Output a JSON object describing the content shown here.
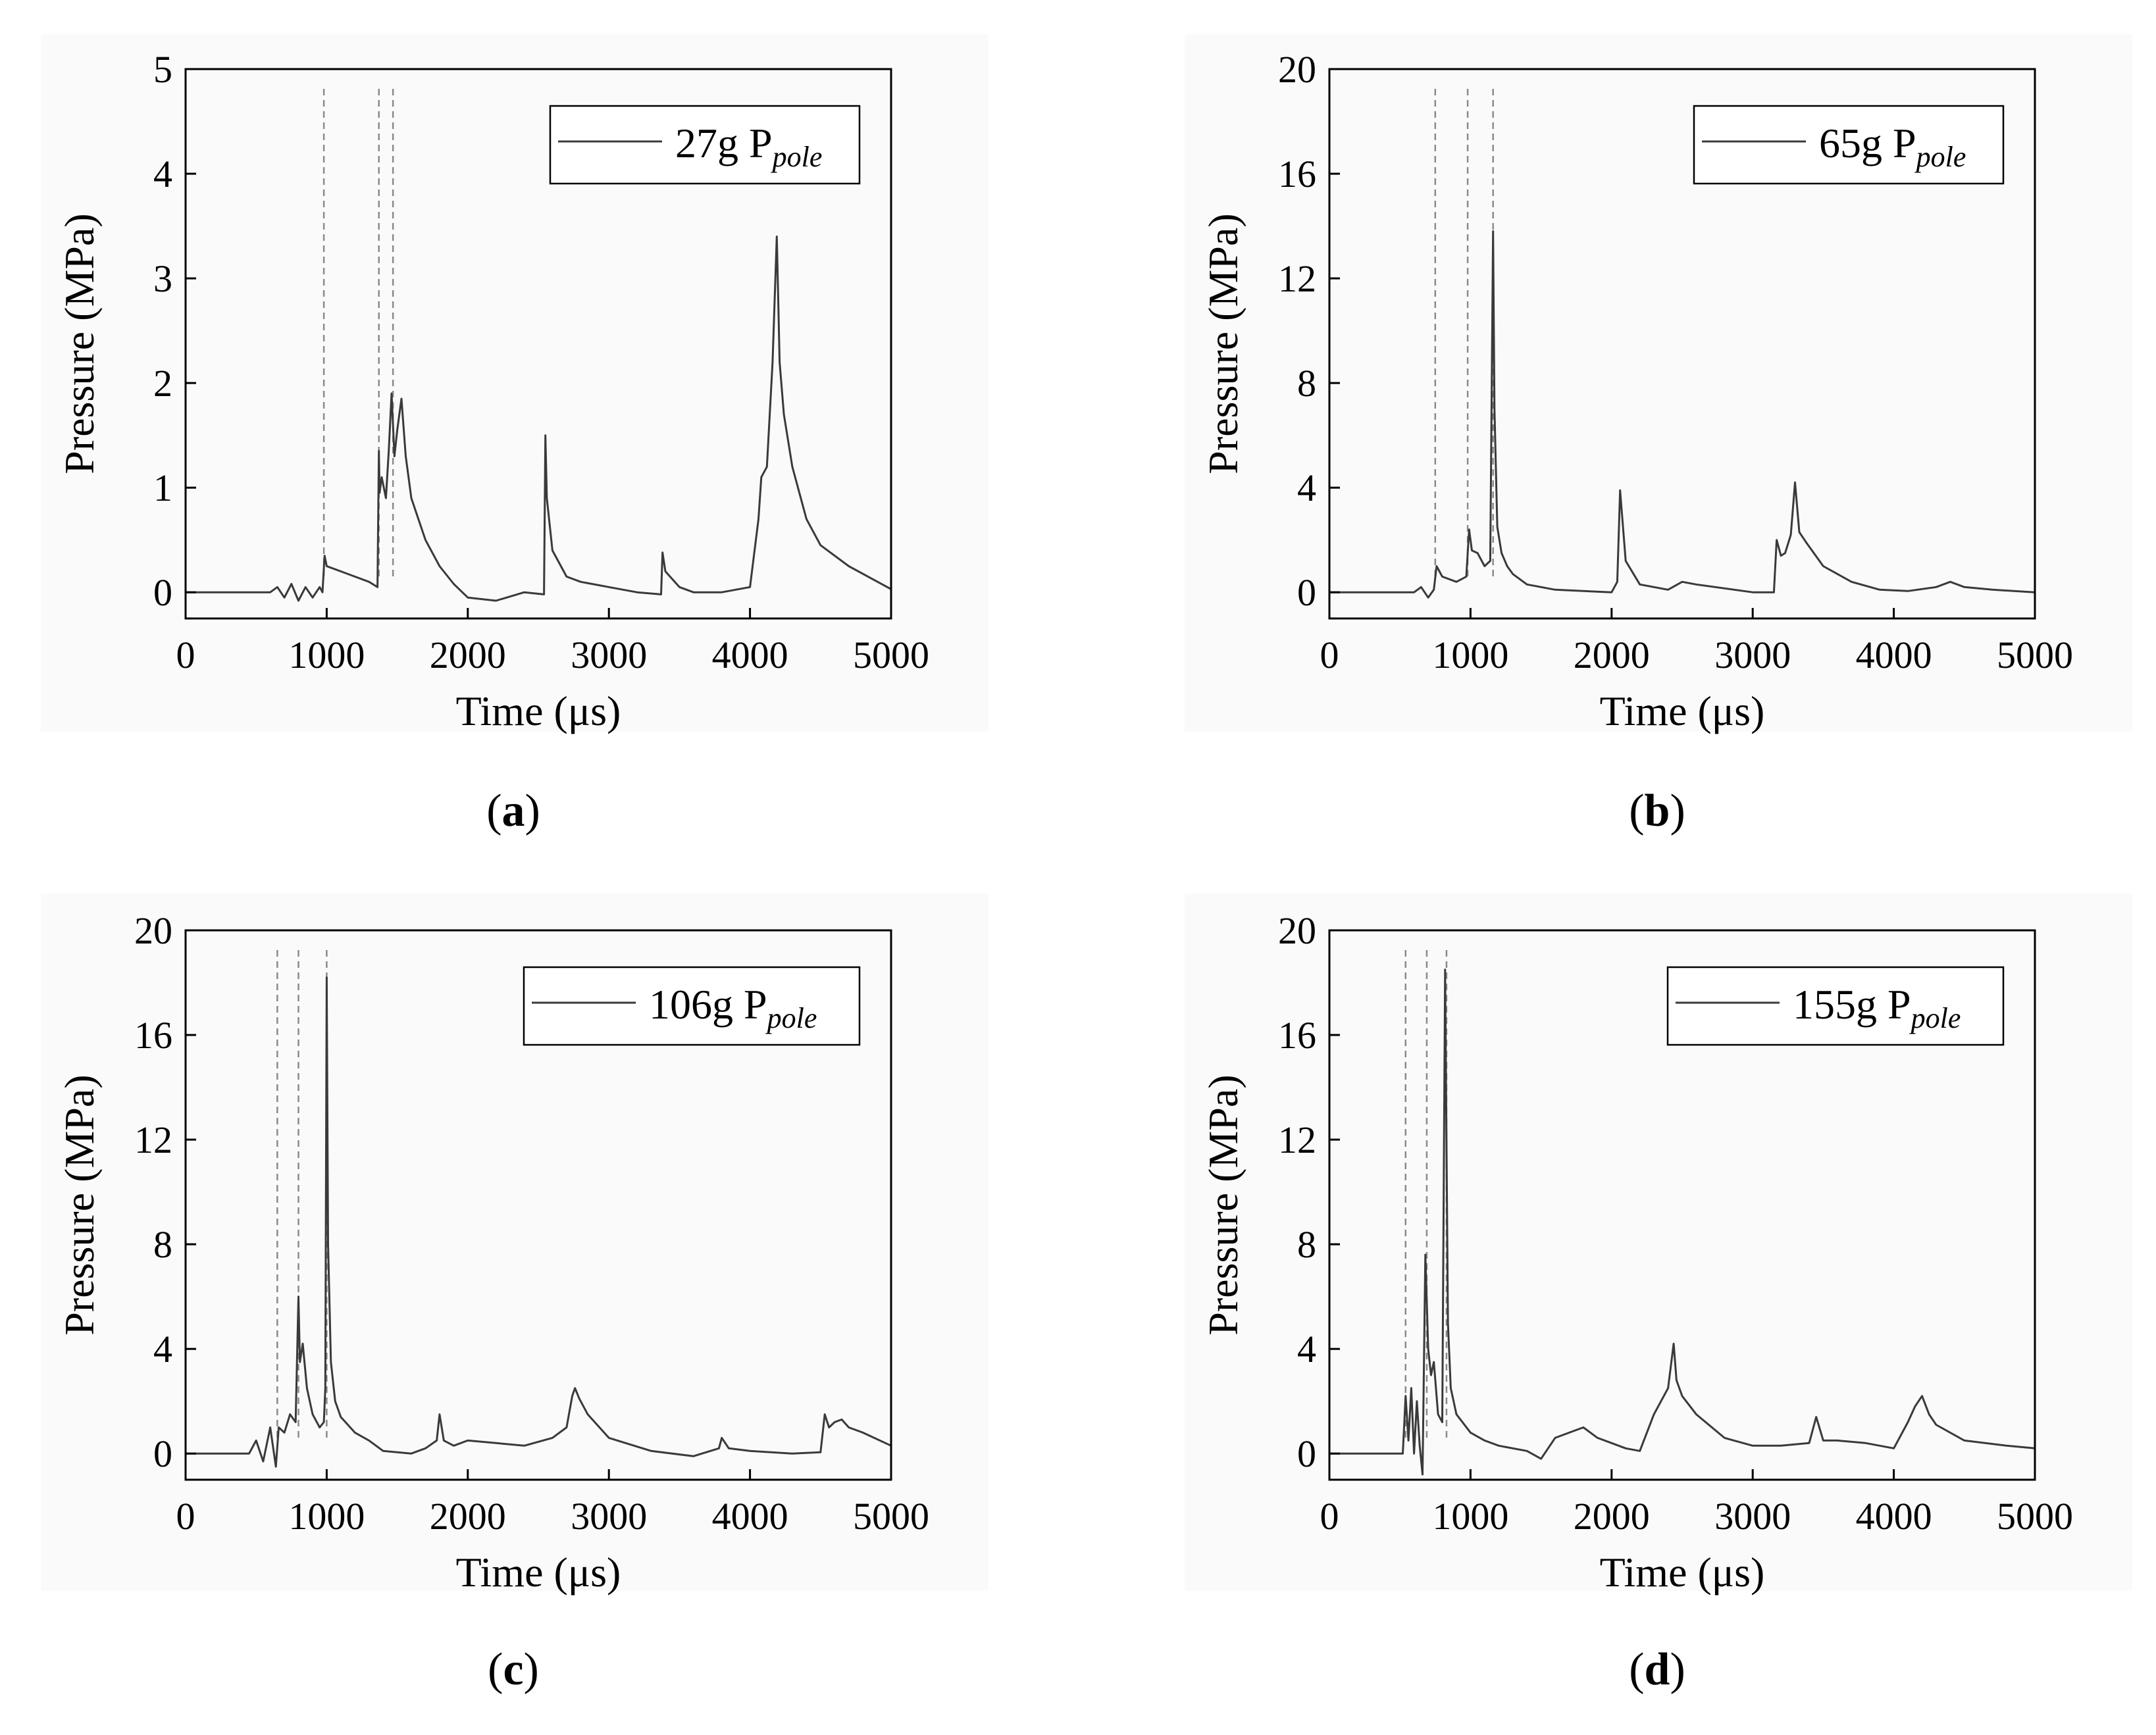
{
  "figure": {
    "trace_color": "#3a3a3a",
    "marker_color": "#8a8a8a"
  },
  "chart_data": [
    {
      "type": "line",
      "panel": "a",
      "caption": {
        "open": "(",
        "letter": "a",
        "close": ")"
      },
      "legend": {
        "main": "27g P",
        "sub": "pole"
      },
      "xlabel": "Time (μs)",
      "ylabel": "Pressure (MPa)",
      "xlim": [
        0,
        5000
      ],
      "ylim": [
        -0.25,
        5
      ],
      "xticks": [
        0,
        1000,
        2000,
        3000,
        4000,
        5000
      ],
      "yticks": [
        0,
        1,
        2,
        3,
        4,
        5
      ],
      "markers": [
        980,
        1370,
        1470
      ],
      "series": [
        {
          "name": "27g P pole",
          "x": [
            0,
            600,
            650,
            700,
            750,
            800,
            850,
            900,
            950,
            970,
            985,
            1000,
            1100,
            1200,
            1300,
            1360,
            1370,
            1375,
            1390,
            1420,
            1440,
            1460,
            1480,
            1500,
            1530,
            1560,
            1600,
            1700,
            1800,
            1900,
            2000,
            2200,
            2400,
            2540,
            2550,
            2560,
            2600,
            2700,
            2800,
            3000,
            3200,
            3370,
            3380,
            3400,
            3500,
            3600,
            3800,
            4000,
            4060,
            4080,
            4120,
            4160,
            4190,
            4200,
            4210,
            4240,
            4300,
            4400,
            4500,
            4700,
            5000
          ],
          "values": [
            0,
            0,
            0.05,
            -0.05,
            0.08,
            -0.08,
            0.05,
            -0.05,
            0.05,
            0,
            0.35,
            0.25,
            0.2,
            0.15,
            0.1,
            0.05,
            1.35,
            0.95,
            1.1,
            0.9,
            1.35,
            1.9,
            1.3,
            1.55,
            1.85,
            1.3,
            0.9,
            0.5,
            0.25,
            0.08,
            -0.05,
            -0.08,
            0,
            -0.02,
            1.5,
            0.9,
            0.4,
            0.15,
            0.1,
            0.05,
            0,
            -0.02,
            0.38,
            0.2,
            0.05,
            0,
            0,
            0.05,
            0.7,
            1.1,
            1.2,
            2.2,
            3.4,
            2.8,
            2.2,
            1.7,
            1.2,
            0.7,
            0.45,
            0.25,
            0.03
          ]
        }
      ]
    },
    {
      "type": "line",
      "panel": "b",
      "caption": {
        "open": "(",
        "letter": "b",
        "close": ")"
      },
      "legend": {
        "main": "65g P",
        "sub": "pole"
      },
      "xlabel": "Time (μs)",
      "ylabel": "Pressure (MPa)",
      "xlim": [
        0,
        5000
      ],
      "ylim": [
        -1,
        20
      ],
      "xticks": [
        0,
        1000,
        2000,
        3000,
        4000,
        5000
      ],
      "yticks": [
        0,
        4,
        8,
        12,
        16,
        20
      ],
      "markers": [
        750,
        980,
        1160
      ],
      "series": [
        {
          "name": "65g P pole",
          "x": [
            0,
            600,
            650,
            700,
            740,
            760,
            800,
            900,
            970,
            990,
            1010,
            1050,
            1100,
            1140,
            1160,
            1170,
            1190,
            1220,
            1260,
            1300,
            1400,
            1600,
            1800,
            2000,
            2040,
            2060,
            2100,
            2200,
            2400,
            2500,
            2600,
            3000,
            3150,
            3170,
            3200,
            3230,
            3270,
            3300,
            3330,
            3380,
            3500,
            3700,
            3900,
            4100,
            4300,
            4400,
            4500,
            4700,
            5000
          ],
          "values": [
            0,
            0,
            0.2,
            -0.2,
            0.1,
            1.0,
            0.6,
            0.4,
            0.6,
            2.4,
            1.6,
            1.5,
            1.0,
            1.2,
            13.8,
            7.0,
            2.5,
            1.5,
            1.0,
            0.7,
            0.3,
            0.1,
            0.05,
            0,
            0.4,
            3.9,
            1.2,
            0.3,
            0.1,
            0.4,
            0.3,
            0,
            0,
            2.0,
            1.4,
            1.5,
            2.2,
            4.2,
            2.3,
            1.9,
            1.0,
            0.4,
            0.1,
            0.05,
            0.2,
            0.4,
            0.2,
            0.1,
            0
          ]
        }
      ]
    },
    {
      "type": "line",
      "panel": "c",
      "caption": {
        "open": "(",
        "letter": "c",
        "close": ")"
      },
      "legend": {
        "main": "106g P",
        "sub": "pole"
      },
      "xlabel": "Time (μs)",
      "ylabel": "Pressure (MPa)",
      "xlim": [
        0,
        5000
      ],
      "ylim": [
        -1,
        20
      ],
      "xticks": [
        0,
        1000,
        2000,
        3000,
        4000,
        5000
      ],
      "yticks": [
        0,
        4,
        8,
        12,
        16,
        20
      ],
      "markers": [
        650,
        800,
        1000
      ],
      "series": [
        {
          "name": "106g P pole",
          "x": [
            0,
            450,
            500,
            550,
            600,
            640,
            660,
            700,
            740,
            780,
            800,
            810,
            830,
            860,
            900,
            950,
            980,
            990,
            1000,
            1010,
            1030,
            1060,
            1100,
            1200,
            1300,
            1400,
            1600,
            1700,
            1780,
            1800,
            1830,
            1900,
            2000,
            2200,
            2400,
            2600,
            2700,
            2740,
            2760,
            2790,
            2850,
            3000,
            3300,
            3600,
            3780,
            3800,
            3850,
            4000,
            4300,
            4500,
            4530,
            4560,
            4600,
            4650,
            4700,
            4800,
            5000
          ],
          "values": [
            0,
            0,
            0.5,
            -0.3,
            1.0,
            -0.5,
            1.0,
            0.8,
            1.5,
            1.2,
            6.0,
            3.5,
            4.2,
            2.5,
            1.5,
            1.0,
            1.2,
            2.5,
            18.2,
            8.0,
            3.5,
            2.0,
            1.4,
            0.8,
            0.5,
            0.1,
            0,
            0.2,
            0.5,
            1.5,
            0.5,
            0.3,
            0.5,
            0.4,
            0.3,
            0.6,
            1.0,
            2.2,
            2.5,
            2.1,
            1.5,
            0.6,
            0.1,
            -0.1,
            0.2,
            0.6,
            0.2,
            0.1,
            0,
            0.05,
            1.5,
            1.0,
            1.2,
            1.3,
            1.0,
            0.8,
            0.3
          ]
        }
      ]
    },
    {
      "type": "line",
      "panel": "d",
      "caption": {
        "open": "(",
        "letter": "d",
        "close": ")"
      },
      "legend": {
        "main": "155g P",
        "sub": "pole"
      },
      "xlabel": "Time (μs)",
      "ylabel": "Pressure (MPa)",
      "xlim": [
        0,
        5000
      ],
      "ylim": [
        -1,
        20
      ],
      "xticks": [
        0,
        1000,
        2000,
        3000,
        4000,
        5000
      ],
      "yticks": [
        0,
        4,
        8,
        12,
        16,
        20
      ],
      "markers": [
        540,
        690,
        830
      ],
      "series": [
        {
          "name": "155g P pole",
          "x": [
            0,
            500,
            520,
            540,
            560,
            580,
            600,
            620,
            640,
            660,
            680,
            700,
            720,
            740,
            770,
            800,
            820,
            840,
            860,
            900,
            1000,
            1100,
            1200,
            1400,
            1500,
            1600,
            1700,
            1800,
            1900,
            2000,
            2100,
            2200,
            2300,
            2400,
            2440,
            2460,
            2500,
            2600,
            2800,
            3000,
            3200,
            3400,
            3450,
            3500,
            3600,
            3800,
            4000,
            4100,
            4150,
            4200,
            4250,
            4300,
            4500,
            4800,
            5000
          ],
          "values": [
            0,
            0,
            0,
            2.2,
            0.5,
            2.5,
            0.0,
            2.0,
            0.3,
            -0.8,
            7.6,
            4.0,
            3.0,
            3.5,
            1.5,
            1.2,
            18.5,
            5.0,
            2.5,
            1.5,
            0.8,
            0.5,
            0.3,
            0.1,
            -0.2,
            0.6,
            0.8,
            1.0,
            0.6,
            0.4,
            0.2,
            0.1,
            1.5,
            2.5,
            4.2,
            2.8,
            2.2,
            1.5,
            0.6,
            0.3,
            0.3,
            0.4,
            1.4,
            0.5,
            0.5,
            0.4,
            0.2,
            1.2,
            1.8,
            2.2,
            1.5,
            1.1,
            0.5,
            0.3,
            0.2
          ]
        }
      ]
    }
  ]
}
